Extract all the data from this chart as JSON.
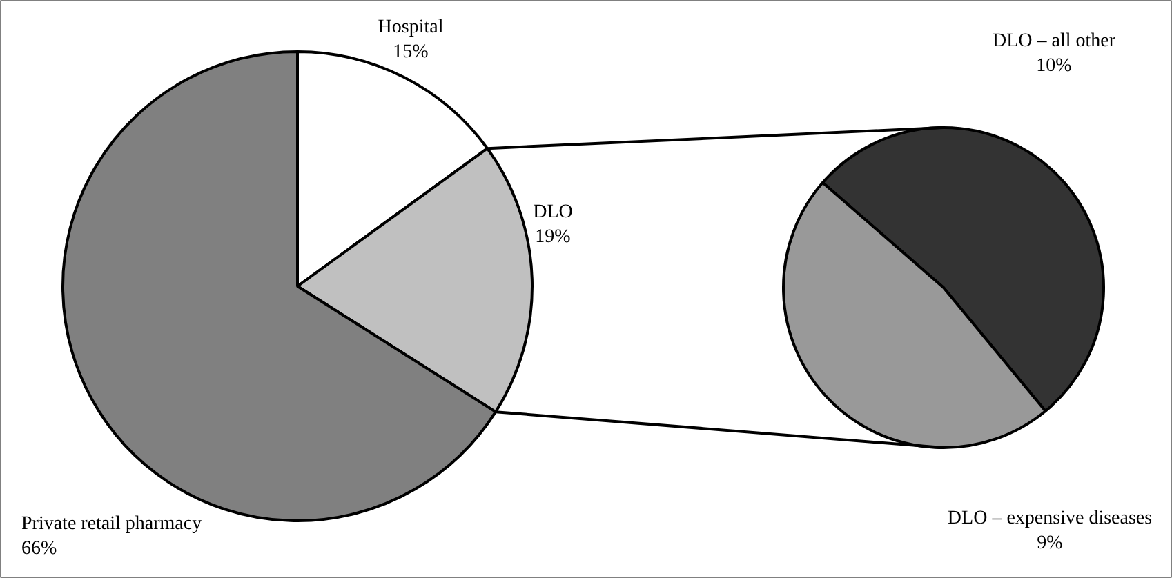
{
  "chart_data": [
    {
      "type": "pie",
      "categories": [
        "Hospital",
        "DLO",
        "Private retail pharmacy"
      ],
      "values": [
        15,
        19,
        66
      ],
      "colors": [
        "#ffffff",
        "#c0c0c0",
        "#808080"
      ],
      "value_labels": [
        "15%",
        "19%",
        "66%"
      ]
    },
    {
      "type": "pie",
      "categories": [
        "DLO – all other",
        "DLO – expensive diseases"
      ],
      "values": [
        10,
        9
      ],
      "colors": [
        "#333333",
        "#999999"
      ],
      "value_labels": [
        "10%",
        "9%"
      ]
    }
  ]
}
